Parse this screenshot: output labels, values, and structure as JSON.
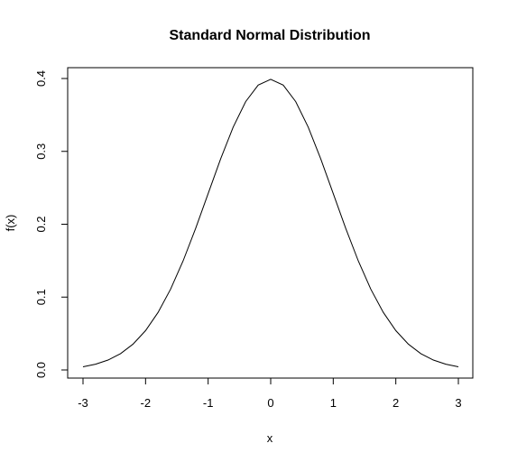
{
  "chart_data": {
    "type": "line",
    "title": "Standard Normal Distribution",
    "xlabel": "x",
    "ylabel": "f(x)",
    "xlim": [
      -3,
      3
    ],
    "ylim": [
      0,
      0.4
    ],
    "x_ticks": [
      -3,
      -2,
      -1,
      0,
      1,
      2,
      3
    ],
    "y_ticks": [
      0.0,
      0.1,
      0.2,
      0.3,
      0.4
    ],
    "x_tick_labels": [
      "-3",
      "-2",
      "-1",
      "0",
      "1",
      "2",
      "3"
    ],
    "y_tick_labels": [
      "0.0",
      "0.1",
      "0.2",
      "0.3",
      "0.4"
    ],
    "grid": false,
    "line_color": "#000000",
    "series": [
      {
        "x": [
          -3.0,
          -2.8,
          -2.6,
          -2.4,
          -2.2,
          -2.0,
          -1.8,
          -1.6,
          -1.4,
          -1.2,
          -1.0,
          -0.8,
          -0.6,
          -0.4,
          -0.2,
          0.0,
          0.2,
          0.4,
          0.6,
          0.8,
          1.0,
          1.2,
          1.4,
          1.6,
          1.8,
          2.0,
          2.2,
          2.4,
          2.6,
          2.8,
          3.0
        ],
        "y": [
          0.0044,
          0.0079,
          0.0136,
          0.0224,
          0.0355,
          0.054,
          0.079,
          0.1109,
          0.1497,
          0.1942,
          0.242,
          0.2897,
          0.3332,
          0.3683,
          0.391,
          0.3989,
          0.391,
          0.3683,
          0.3332,
          0.2897,
          0.242,
          0.1942,
          0.1497,
          0.1109,
          0.079,
          0.054,
          0.0355,
          0.0224,
          0.0136,
          0.0079,
          0.0044
        ]
      }
    ]
  }
}
